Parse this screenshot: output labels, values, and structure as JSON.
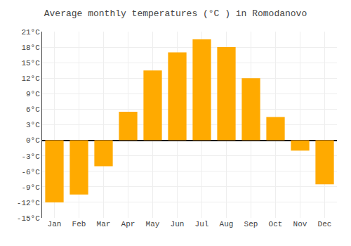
{
  "chart_data": {
    "type": "bar",
    "title": "Average monthly temperatures (°C ) in Romodanovo",
    "categories": [
      "Jan",
      "Feb",
      "Mar",
      "Apr",
      "May",
      "Jun",
      "Jul",
      "Aug",
      "Sep",
      "Oct",
      "Nov",
      "Dec"
    ],
    "values": [
      -12,
      -10.5,
      -5,
      5.5,
      13.5,
      17,
      19.5,
      18,
      12,
      4.5,
      -2.0,
      -8.5
    ],
    "color": "#FFAA00",
    "ylim": [
      -15,
      21
    ],
    "yticks": [
      {
        "value": -15,
        "label": "-15°C"
      },
      {
        "value": -12,
        "label": "-12°C"
      },
      {
        "value": -9,
        "label": "-9°C"
      },
      {
        "value": -6,
        "label": "-6°C"
      },
      {
        "value": -3,
        "label": "-3°C"
      },
      {
        "value": 0,
        "label": "0°C"
      },
      {
        "value": 3,
        "label": "3°C"
      },
      {
        "value": 6,
        "label": "6°C"
      },
      {
        "value": 9,
        "label": "9°C"
      },
      {
        "value": 12,
        "label": "12°C"
      },
      {
        "value": 15,
        "label": "15°C"
      },
      {
        "value": 18,
        "label": "18°C"
      },
      {
        "value": 21,
        "label": "21°C"
      }
    ],
    "grid": true
  }
}
